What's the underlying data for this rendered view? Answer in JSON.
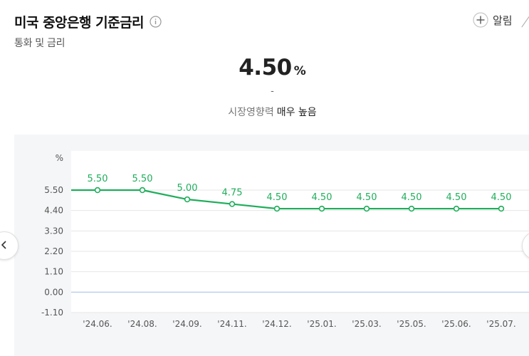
{
  "header": {
    "title": "미국 중앙은행 기준금리",
    "subtitle": "통화 및 금리",
    "alarm_label": "알림"
  },
  "summary": {
    "value": "4.50",
    "unit": "%",
    "change": "-",
    "impact_label": "시장영향력",
    "impact_value": "매우 높음"
  },
  "icons": {
    "info": "info-icon",
    "alarm": "plus-circle-icon",
    "prev": "chevron-left-icon",
    "next": "chevron-right-icon"
  },
  "colors": {
    "line": "#1fae5b",
    "label": "#1fae5b",
    "axis": "#555555",
    "zero_line": "#a9c4e8",
    "grid": "#e6e6e6",
    "panel": "#f5f6f8"
  },
  "chart_data": {
    "type": "line",
    "unit_label": "%",
    "categories": [
      "'24.06.",
      "'24.08.",
      "'24.09.",
      "'24.11.",
      "'24.12.",
      "'25.01.",
      "'25.03.",
      "'25.05.",
      "'25.06.",
      "'25.07."
    ],
    "series": [
      {
        "values": [
          5.5,
          5.5,
          5.0,
          4.75,
          4.5,
          4.5,
          4.5,
          4.5,
          4.5,
          4.5
        ],
        "labels": [
          "5.50",
          "5.50",
          "5.00",
          "4.75",
          "4.50",
          "4.50",
          "4.50",
          "4.50",
          "4.50",
          "4.50"
        ]
      }
    ],
    "y_ticks": [
      5.5,
      4.4,
      3.3,
      2.2,
      1.1,
      0.0,
      -1.1
    ],
    "y_tick_labels": [
      "5.50",
      "4.40",
      "3.30",
      "2.20",
      "1.10",
      "0.00",
      "-1.10"
    ],
    "ylim": [
      -1.1,
      5.5
    ],
    "grid": true,
    "legend": "none"
  }
}
